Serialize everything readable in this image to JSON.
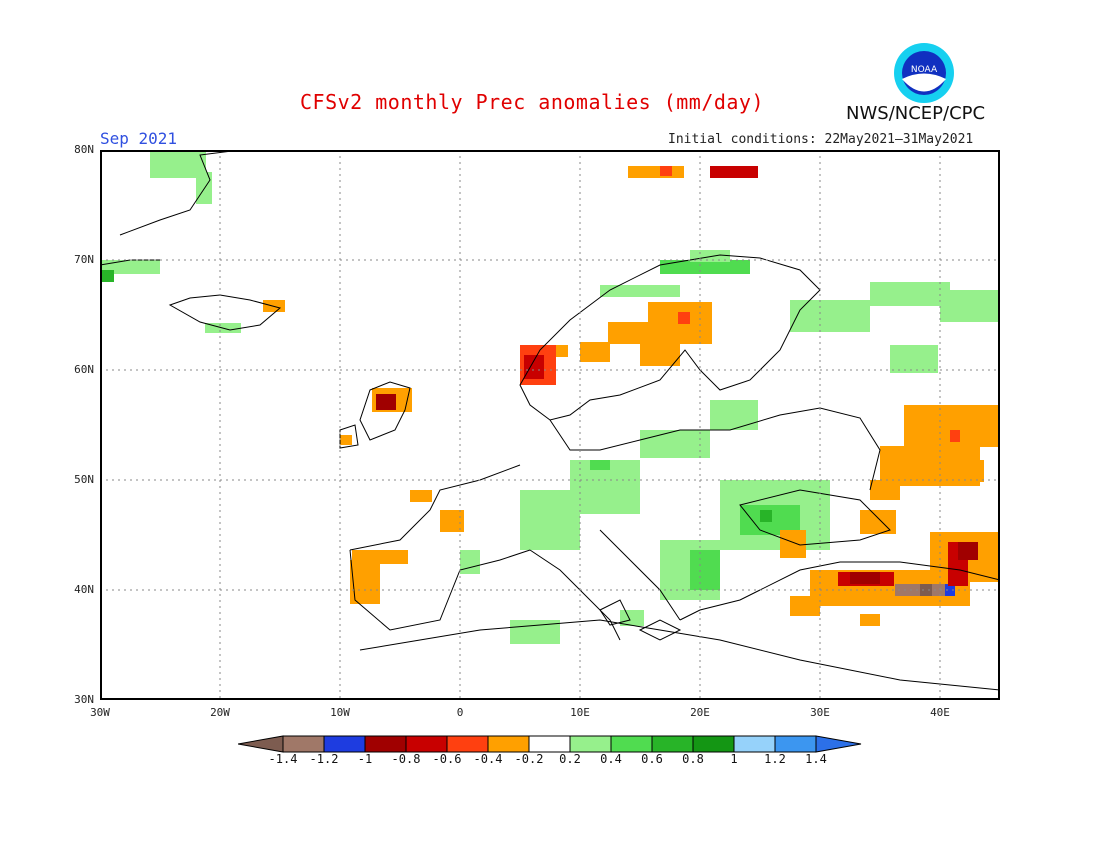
{
  "header": {
    "title": "CFSv2 monthly Prec anomalies (mm/day)",
    "org": "NWS/NCEP/CPC",
    "logo_text": "NOAA",
    "period": "Sep 2021",
    "initial_conditions": "Initial conditions: 22May2021–31May2021"
  },
  "map": {
    "lat_labels": [
      "80N",
      "70N",
      "60N",
      "50N",
      "40N",
      "30N"
    ],
    "lon_labels": [
      "30W",
      "20W",
      "10W",
      "0",
      "10E",
      "20E",
      "30E",
      "40E"
    ],
    "lon_range": [
      -30,
      45
    ],
    "lat_range": [
      30,
      80
    ],
    "gridlines": "dotted"
  },
  "colorbar": {
    "labels": [
      "-1.4",
      "-1.2",
      "-1",
      "-0.8",
      "-0.6",
      "-0.4",
      "-0.2",
      "0.2",
      "0.4",
      "0.6",
      "0.8",
      "1",
      "1.2",
      "1.4"
    ],
    "colors": [
      "#7d5c50",
      "#a07868",
      "#1e3ce0",
      "#a00000",
      "#c80000",
      "#ff4010",
      "#ffa000",
      "#ffffff",
      "#96f08c",
      "#50dc50",
      "#28b428",
      "#149614",
      "#96d2fa",
      "#3c96f0"
    ],
    "end_low_color": "#7d5c50",
    "end_high_color": "#2c70e8"
  },
  "anomaly_colors": {
    "light_green": "#96f08c",
    "green": "#50dc50",
    "dark_green": "#28b428",
    "orange": "#ffa000",
    "red_orange": "#ff4010",
    "red": "#c80000",
    "dark_red": "#a00000",
    "brown": "#a07868",
    "blue": "#1e3ce0"
  }
}
